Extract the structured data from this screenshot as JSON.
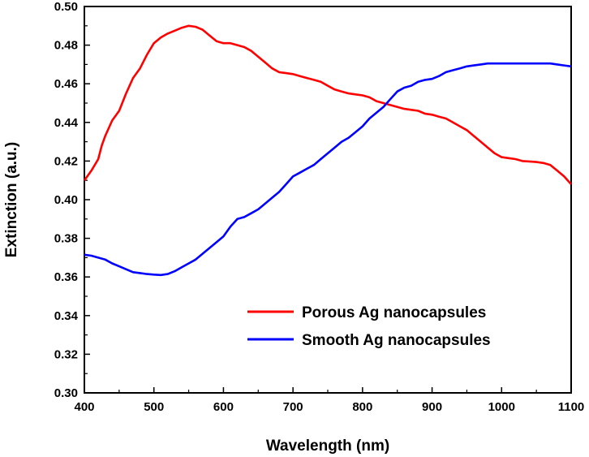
{
  "chart_data": {
    "type": "line",
    "title": "",
    "xlabel": "Wavelength (nm)",
    "ylabel": "Extinction (a.u.)",
    "xlim": [
      400,
      1100
    ],
    "ylim": [
      0.3,
      0.5
    ],
    "xticks": [
      400,
      500,
      600,
      700,
      800,
      900,
      1000,
      1100
    ],
    "xtick_labels": [
      "400",
      "500",
      "600",
      "700",
      "800",
      "900",
      "1000",
      "1100"
    ],
    "yticks": [
      0.3,
      0.32,
      0.34,
      0.36,
      0.38,
      0.4,
      0.42,
      0.44,
      0.46,
      0.48,
      0.5
    ],
    "ytick_labels": [
      "0.30",
      "0.32",
      "0.34",
      "0.36",
      "0.38",
      "0.40",
      "0.42",
      "0.44",
      "0.46",
      "0.48",
      "0.50"
    ],
    "grid": false,
    "legend_position": "bottom-right",
    "series": [
      {
        "name": "Porous Ag nanocapsules",
        "color": "#ff0000",
        "x": [
          400,
          410,
          420,
          425,
          430,
          440,
          450,
          460,
          470,
          480,
          490,
          500,
          510,
          520,
          530,
          540,
          550,
          560,
          570,
          580,
          590,
          600,
          610,
          620,
          630,
          640,
          650,
          660,
          670,
          680,
          690,
          700,
          710,
          720,
          730,
          740,
          750,
          760,
          770,
          780,
          790,
          800,
          810,
          820,
          830,
          840,
          850,
          860,
          870,
          880,
          890,
          900,
          910,
          920,
          930,
          940,
          950,
          960,
          970,
          980,
          990,
          1000,
          1010,
          1020,
          1030,
          1040,
          1050,
          1060,
          1070,
          1080,
          1090,
          1100
        ],
        "values": [
          0.41,
          0.415,
          0.421,
          0.428,
          0.433,
          0.441,
          0.446,
          0.455,
          0.463,
          0.468,
          0.475,
          0.481,
          0.484,
          0.486,
          0.4875,
          0.489,
          0.49,
          0.4895,
          0.488,
          0.485,
          0.482,
          0.481,
          0.481,
          0.48,
          0.479,
          0.477,
          0.474,
          0.471,
          0.468,
          0.466,
          0.4655,
          0.465,
          0.464,
          0.463,
          0.462,
          0.461,
          0.459,
          0.457,
          0.456,
          0.455,
          0.4545,
          0.454,
          0.453,
          0.451,
          0.45,
          0.449,
          0.448,
          0.447,
          0.4465,
          0.446,
          0.4445,
          0.444,
          0.443,
          0.442,
          0.44,
          0.438,
          0.436,
          0.433,
          0.43,
          0.427,
          0.424,
          0.422,
          0.4215,
          0.421,
          0.42,
          0.4198,
          0.4195,
          0.419,
          0.418,
          0.415,
          0.412,
          0.408
        ]
      },
      {
        "name": "Smooth Ag nanocapsules",
        "color": "#0000ff",
        "x": [
          400,
          410,
          420,
          430,
          440,
          450,
          460,
          470,
          480,
          490,
          500,
          510,
          520,
          530,
          540,
          550,
          560,
          570,
          580,
          590,
          600,
          610,
          620,
          630,
          640,
          650,
          660,
          670,
          680,
          690,
          700,
          710,
          720,
          730,
          740,
          750,
          760,
          770,
          780,
          790,
          800,
          810,
          820,
          830,
          840,
          850,
          860,
          870,
          880,
          890,
          900,
          910,
          920,
          930,
          940,
          950,
          960,
          970,
          980,
          990,
          1000,
          1010,
          1020,
          1030,
          1040,
          1050,
          1060,
          1070,
          1080,
          1090,
          1100
        ],
        "values": [
          0.3715,
          0.371,
          0.37,
          0.369,
          0.367,
          0.3655,
          0.364,
          0.3625,
          0.362,
          0.3615,
          0.3612,
          0.361,
          0.3615,
          0.363,
          0.365,
          0.367,
          0.369,
          0.372,
          0.375,
          0.378,
          0.381,
          0.386,
          0.39,
          0.391,
          0.393,
          0.395,
          0.398,
          0.401,
          0.404,
          0.408,
          0.412,
          0.414,
          0.416,
          0.418,
          0.421,
          0.424,
          0.427,
          0.43,
          0.432,
          0.435,
          0.438,
          0.442,
          0.445,
          0.448,
          0.452,
          0.456,
          0.458,
          0.459,
          0.461,
          0.462,
          0.4625,
          0.464,
          0.466,
          0.467,
          0.468,
          0.469,
          0.4695,
          0.47,
          0.4705,
          0.4705,
          0.4705,
          0.4705,
          0.4705,
          0.4705,
          0.4705,
          0.4705,
          0.4705,
          0.4705,
          0.47,
          0.4695,
          0.469
        ]
      }
    ]
  }
}
